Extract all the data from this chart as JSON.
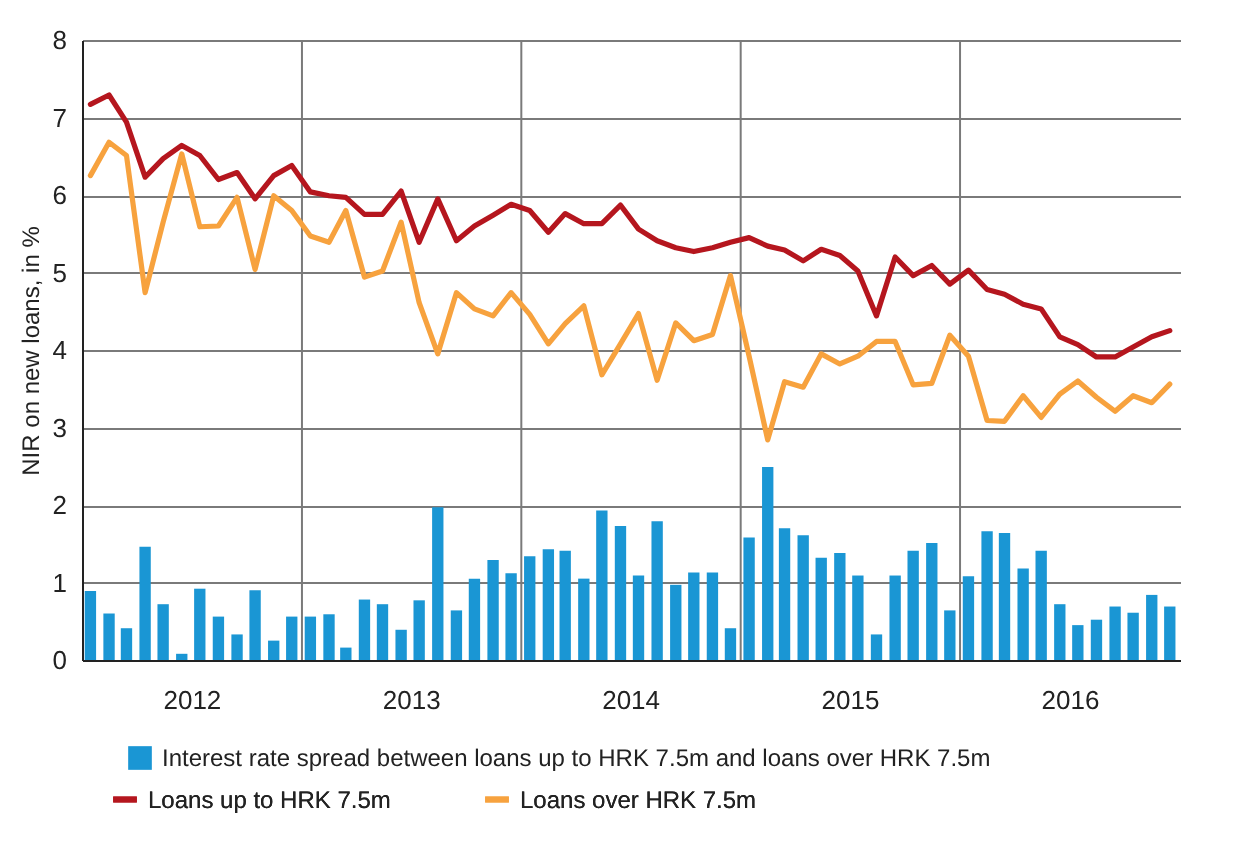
{
  "chart_data": {
    "type": "bar",
    "ylabel": "NIR on new loans, in %",
    "x": [
      "2012-01-15",
      "2012-02-15",
      "2012-03-15",
      "2012-04-15",
      "2012-05-15",
      "2012-06-15",
      "2012-07-15",
      "2012-08-15",
      "2012-09-15",
      "2012-10-15",
      "2012-11-15",
      "2012-12-15",
      "2013-01-15",
      "2013-02-15",
      "2013-03-15",
      "2013-04-15",
      "2013-05-15",
      "2013-06-15",
      "2013-07-15",
      "2013-08-15",
      "2013-09-15",
      "2013-10-15",
      "2013-11-15",
      "2013-12-15",
      "2014-01-15",
      "2014-02-15",
      "2014-03-15",
      "2014-04-15",
      "2014-05-15",
      "2014-06-15",
      "2014-07-15",
      "2014-08-15",
      "2014-09-15",
      "2014-10-15",
      "2014-11-15",
      "2014-12-15",
      "2015-01-15",
      "2015-02-15",
      "2015-03-15",
      "2015-04-15",
      "2015-05-15",
      "2015-06-15",
      "2015-07-15",
      "2015-08-15",
      "2015-09-15",
      "2015-10-15",
      "2015-11-15",
      "2015-12-15",
      "2016-01-15",
      "2016-02-15",
      "2016-03-15",
      "2016-04-15",
      "2016-05-15",
      "2016-06-15",
      "2016-07-15",
      "2016-08-15",
      "2016-09-15",
      "2016-10-15",
      "2016-11-15",
      "2016-12-15"
    ],
    "xlim": [
      "2012-01-01",
      "2017-01-01"
    ],
    "xticks": [
      {
        "value": "2012-07-01",
        "label": "2012"
      },
      {
        "value": "2013-01-01",
        "label": null
      },
      {
        "value": "2013-07-01",
        "label": "2013"
      },
      {
        "value": "2014-01-01",
        "label": null
      },
      {
        "value": "2014-07-01",
        "label": "2014"
      },
      {
        "value": "2015-01-01",
        "label": null
      },
      {
        "value": "2015-07-01",
        "label": "2015"
      },
      {
        "value": "2016-01-01",
        "label": null
      },
      {
        "value": "2016-07-01",
        "label": "2016"
      }
    ],
    "ylim": [
      0,
      8
    ],
    "yticks": [
      0,
      1,
      2,
      3,
      4,
      5,
      6,
      7,
      8
    ],
    "grid": true,
    "legend": "bottom",
    "series": [
      {
        "name": "Interest rate spread between loans up to HRK 7.5m and loans over HRK 7.5m",
        "color": "#1a96d4",
        "values": [
          0.89,
          0.6,
          0.41,
          1.46,
          0.72,
          0.08,
          0.92,
          0.56,
          0.33,
          0.9,
          0.25,
          0.56,
          0.56,
          0.59,
          0.16,
          0.78,
          0.72,
          0.39,
          0.77,
          1.97,
          0.64,
          1.05,
          1.29,
          1.12,
          1.34,
          1.43,
          1.41,
          1.05,
          1.93,
          1.73,
          1.09,
          1.79,
          0.97,
          1.13,
          1.13,
          0.41,
          1.58,
          2.49,
          1.7,
          1.61,
          1.32,
          1.38,
          1.09,
          0.33,
          1.09,
          1.41,
          1.51,
          0.64,
          1.08,
          1.66,
          1.64,
          1.18,
          1.41,
          0.72,
          0.45,
          0.52,
          0.69,
          0.61,
          0.84,
          0.69
        ]
      },
      {
        "name": "Loans up to HRK 7.5m",
        "type": "line",
        "color": "#b5161e",
        "values": [
          7.17,
          7.29,
          6.94,
          6.23,
          6.47,
          6.64,
          6.51,
          6.2,
          6.29,
          5.95,
          6.25,
          6.38,
          6.04,
          5.99,
          5.97,
          5.75,
          5.75,
          6.05,
          5.39,
          5.95,
          5.41,
          5.6,
          5.74,
          5.88,
          5.8,
          5.52,
          5.76,
          5.63,
          5.63,
          5.87,
          5.56,
          5.41,
          5.32,
          5.27,
          5.32,
          5.39,
          5.45,
          5.34,
          5.29,
          5.15,
          5.3,
          5.22,
          5.02,
          4.44,
          5.2,
          4.96,
          5.09,
          4.85,
          5.03,
          4.78,
          4.72,
          4.59,
          4.53,
          4.17,
          4.07,
          3.91,
          3.91,
          4.04,
          4.17,
          4.25
        ]
      },
      {
        "name": "Loans over HRK 7.5m",
        "type": "line",
        "color": "#f7a23e",
        "values": [
          6.25,
          6.68,
          6.51,
          4.74,
          5.65,
          6.53,
          5.59,
          5.6,
          5.97,
          5.04,
          5.99,
          5.8,
          5.47,
          5.39,
          5.8,
          4.94,
          5.02,
          5.65,
          4.61,
          3.95,
          4.74,
          4.53,
          4.44,
          4.74,
          4.46,
          4.08,
          4.34,
          4.57,
          3.68,
          4.08,
          4.47,
          3.61,
          4.35,
          4.12,
          4.2,
          4.96,
          3.92,
          2.84,
          3.59,
          3.52,
          3.95,
          3.82,
          3.92,
          4.11,
          4.11,
          3.55,
          3.57,
          4.19,
          3.92,
          3.09,
          3.08,
          3.41,
          3.13,
          3.43,
          3.6,
          3.39,
          3.21,
          3.41,
          3.32,
          3.56
        ]
      }
    ]
  }
}
